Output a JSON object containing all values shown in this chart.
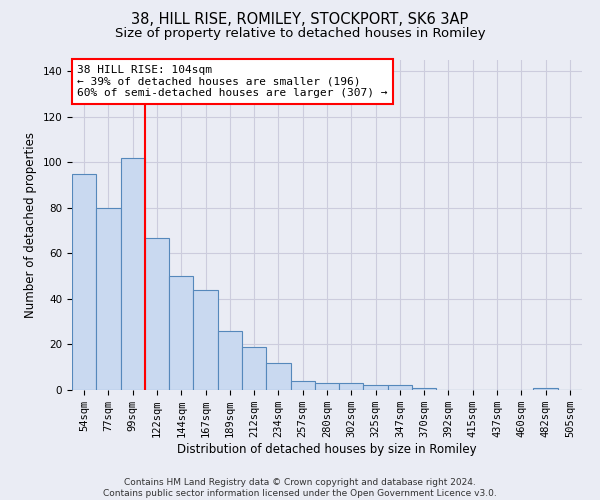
{
  "title1": "38, HILL RISE, ROMILEY, STOCKPORT, SK6 3AP",
  "title2": "Size of property relative to detached houses in Romiley",
  "xlabel": "Distribution of detached houses by size in Romiley",
  "ylabel": "Number of detached properties",
  "bin_labels": [
    "54sqm",
    "77sqm",
    "99sqm",
    "122sqm",
    "144sqm",
    "167sqm",
    "189sqm",
    "212sqm",
    "234sqm",
    "257sqm",
    "280sqm",
    "302sqm",
    "325sqm",
    "347sqm",
    "370sqm",
    "392sqm",
    "415sqm",
    "437sqm",
    "460sqm",
    "482sqm",
    "505sqm"
  ],
  "bar_values": [
    95,
    80,
    102,
    67,
    50,
    44,
    26,
    19,
    12,
    4,
    3,
    3,
    2,
    2,
    1,
    0,
    0,
    0,
    0,
    1,
    0
  ],
  "bar_color": "#c9d9f0",
  "bar_edge_color": "#5588bb",
  "red_line_x": 2.5,
  "annotation_line1": "38 HILL RISE: 104sqm",
  "annotation_line2": "← 39% of detached houses are smaller (196)",
  "annotation_line3": "60% of semi-detached houses are larger (307) →",
  "annotation_box_color": "white",
  "annotation_box_edge_color": "red",
  "ylim": [
    0,
    145
  ],
  "yticks": [
    0,
    20,
    40,
    60,
    80,
    100,
    120,
    140
  ],
  "grid_color": "#ccccdd",
  "background_color": "#eaecf4",
  "footer_text": "Contains HM Land Registry data © Crown copyright and database right 2024.\nContains public sector information licensed under the Open Government Licence v3.0.",
  "title1_fontsize": 10.5,
  "title2_fontsize": 9.5,
  "xlabel_fontsize": 8.5,
  "ylabel_fontsize": 8.5,
  "tick_fontsize": 7.5,
  "annotation_fontsize": 8,
  "footer_fontsize": 6.5
}
